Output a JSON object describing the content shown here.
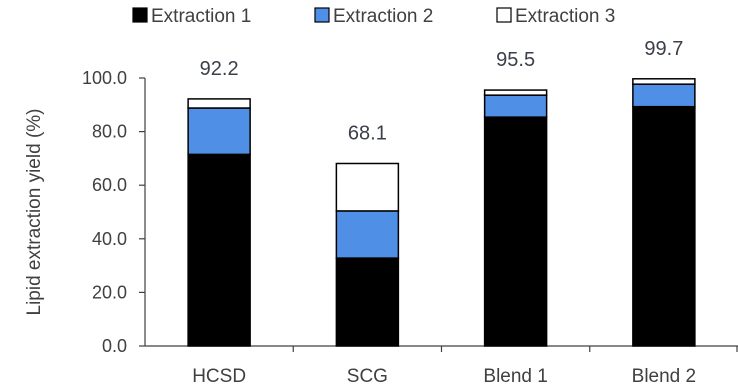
{
  "chart_data": {
    "type": "bar",
    "stacked": true,
    "categories": [
      "HCSD",
      "SCG",
      "Blend 1",
      "Blend 2"
    ],
    "series": [
      {
        "name": "Extraction 1",
        "color": "#000000",
        "values": [
          71.5,
          32.8,
          85.4,
          89.3
        ]
      },
      {
        "name": "Extraction 2",
        "color": "#4f8fe6",
        "values": [
          17.3,
          17.6,
          8.2,
          8.4
        ]
      },
      {
        "name": "Extraction 3",
        "color": "#ffffff",
        "values": [
          3.4,
          17.7,
          1.9,
          2.0
        ]
      }
    ],
    "totals": [
      "92.2",
      "68.1",
      "95.5",
      "99.7"
    ],
    "ylabel": "Lipid extraction yield (%)",
    "xlabel": "",
    "title": "",
    "ylim": [
      0,
      100
    ],
    "yticks": [
      "0.0",
      "20.0",
      "40.0",
      "60.0",
      "80.0",
      "100.0"
    ],
    "grid": false,
    "legend_position": "top"
  }
}
